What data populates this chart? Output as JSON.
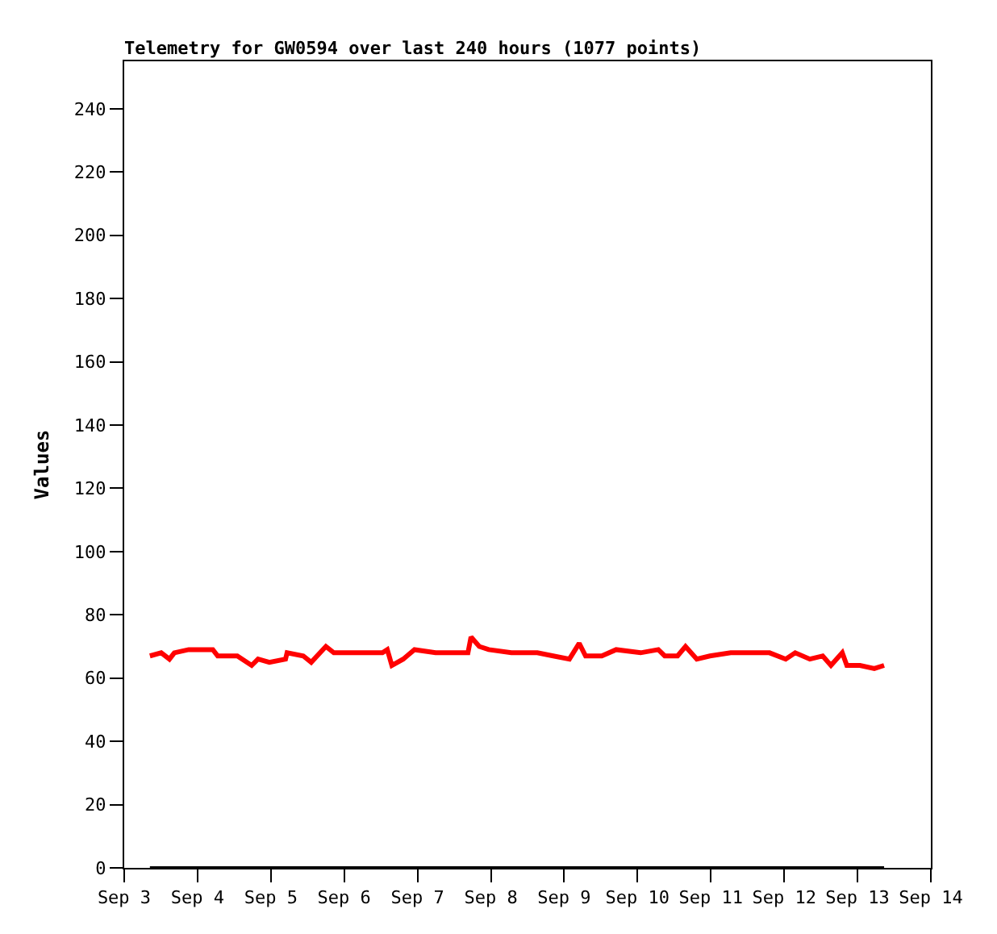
{
  "chart_data": {
    "type": "line",
    "title": "Telemetry for GW0594 over last 240 hours (1077 points)",
    "ylabel": "Values",
    "xlim": [
      "--09-03",
      "--09-14"
    ],
    "xticks": [
      {
        "value": "--09-03",
        "label": "Sep 3"
      },
      {
        "value": "--09-04",
        "label": "Sep 4"
      },
      {
        "value": "--09-05",
        "label": "Sep 5"
      },
      {
        "value": "--09-06",
        "label": "Sep 6"
      },
      {
        "value": "--09-07",
        "label": "Sep 7"
      },
      {
        "value": "--09-08",
        "label": "Sep 8"
      },
      {
        "value": "--09-09",
        "label": "Sep 9"
      },
      {
        "value": "--09-10",
        "label": "Sep 10"
      },
      {
        "value": "--09-11",
        "label": "Sep 11"
      },
      {
        "value": "--09-12",
        "label": "Sep 12"
      },
      {
        "value": "--09-13",
        "label": "Sep 13"
      },
      {
        "value": "--09-14",
        "label": "Sep 14"
      }
    ],
    "ylim": [
      0,
      255
    ],
    "yticks": [
      0,
      20,
      40,
      60,
      80,
      100,
      120,
      140,
      160,
      180,
      200,
      220,
      240
    ],
    "grid": false,
    "marker": "none",
    "line_style": "solid",
    "series": [
      {
        "color": "#ff0000",
        "x": [
          "--09-03T08:24",
          "--09-03T12:06",
          "--09-03T14:48",
          "--09-03T16:24",
          "--09-03T21:06",
          "--09-04T05:00",
          "--09-04T06:36",
          "--09-04T13:00",
          "--09-04T17:42",
          "--09-04T19:48",
          "--09-04T23:30",
          "--09-05T04:48",
          "--09-05T05:18",
          "--09-05T10:36",
          "--09-05T13:12",
          "--09-05T18:00",
          "--09-05T20:36",
          "--09-06T12:30",
          "--09-06T14:06",
          "--09-06T15:36",
          "--09-06T19:18",
          "--09-06T23:00",
          "--09-07T05:54",
          "--09-07T12:48",
          "--09-07T16:30",
          "--09-07T17:30",
          "--09-07T20:12",
          "--09-07T23:18",
          "--09-08T06:42",
          "--09-08T12:00",
          "--09-08T15:12",
          "--09-08T20:24",
          "--09-09T01:42",
          "--09-09T04:54",
          "--09-09T07:00",
          "--09-09T12:18",
          "--09-09T17:00",
          "--09-10T01:00",
          "--09-10T06:48",
          "--09-10T08:54",
          "--09-10T13:06",
          "--09-10T15:42",
          "--09-10T19:24",
          "--09-10T23:42",
          "--09-11T06:30",
          "--09-11T13:54",
          "--09-11T19:12",
          "--09-12T00:30",
          "--09-12T03:36",
          "--09-12T08:24",
          "--09-12T12:36",
          "--09-12T15:18",
          "--09-12T19:00",
          "--09-12T20:30",
          "--09-13T00:48",
          "--09-13T05:30",
          "--09-13T08:42"
        ],
        "values": [
          67,
          68,
          66,
          68,
          69,
          69,
          67,
          67,
          64,
          66,
          65,
          66,
          68,
          67,
          65,
          70,
          68,
          68,
          69,
          64,
          66,
          69,
          68,
          68,
          68,
          73,
          70,
          69,
          68,
          68,
          68,
          67,
          66,
          71,
          67,
          67,
          69,
          68,
          69,
          67,
          67,
          70,
          66,
          67,
          68,
          68,
          68,
          66,
          68,
          66,
          67,
          64,
          68,
          64,
          64,
          63,
          64
        ]
      },
      {
        "color": "#000000",
        "x": [
          "--09-03T08:24",
          "--09-13T08:42"
        ],
        "values": [
          0,
          0
        ]
      }
    ]
  }
}
